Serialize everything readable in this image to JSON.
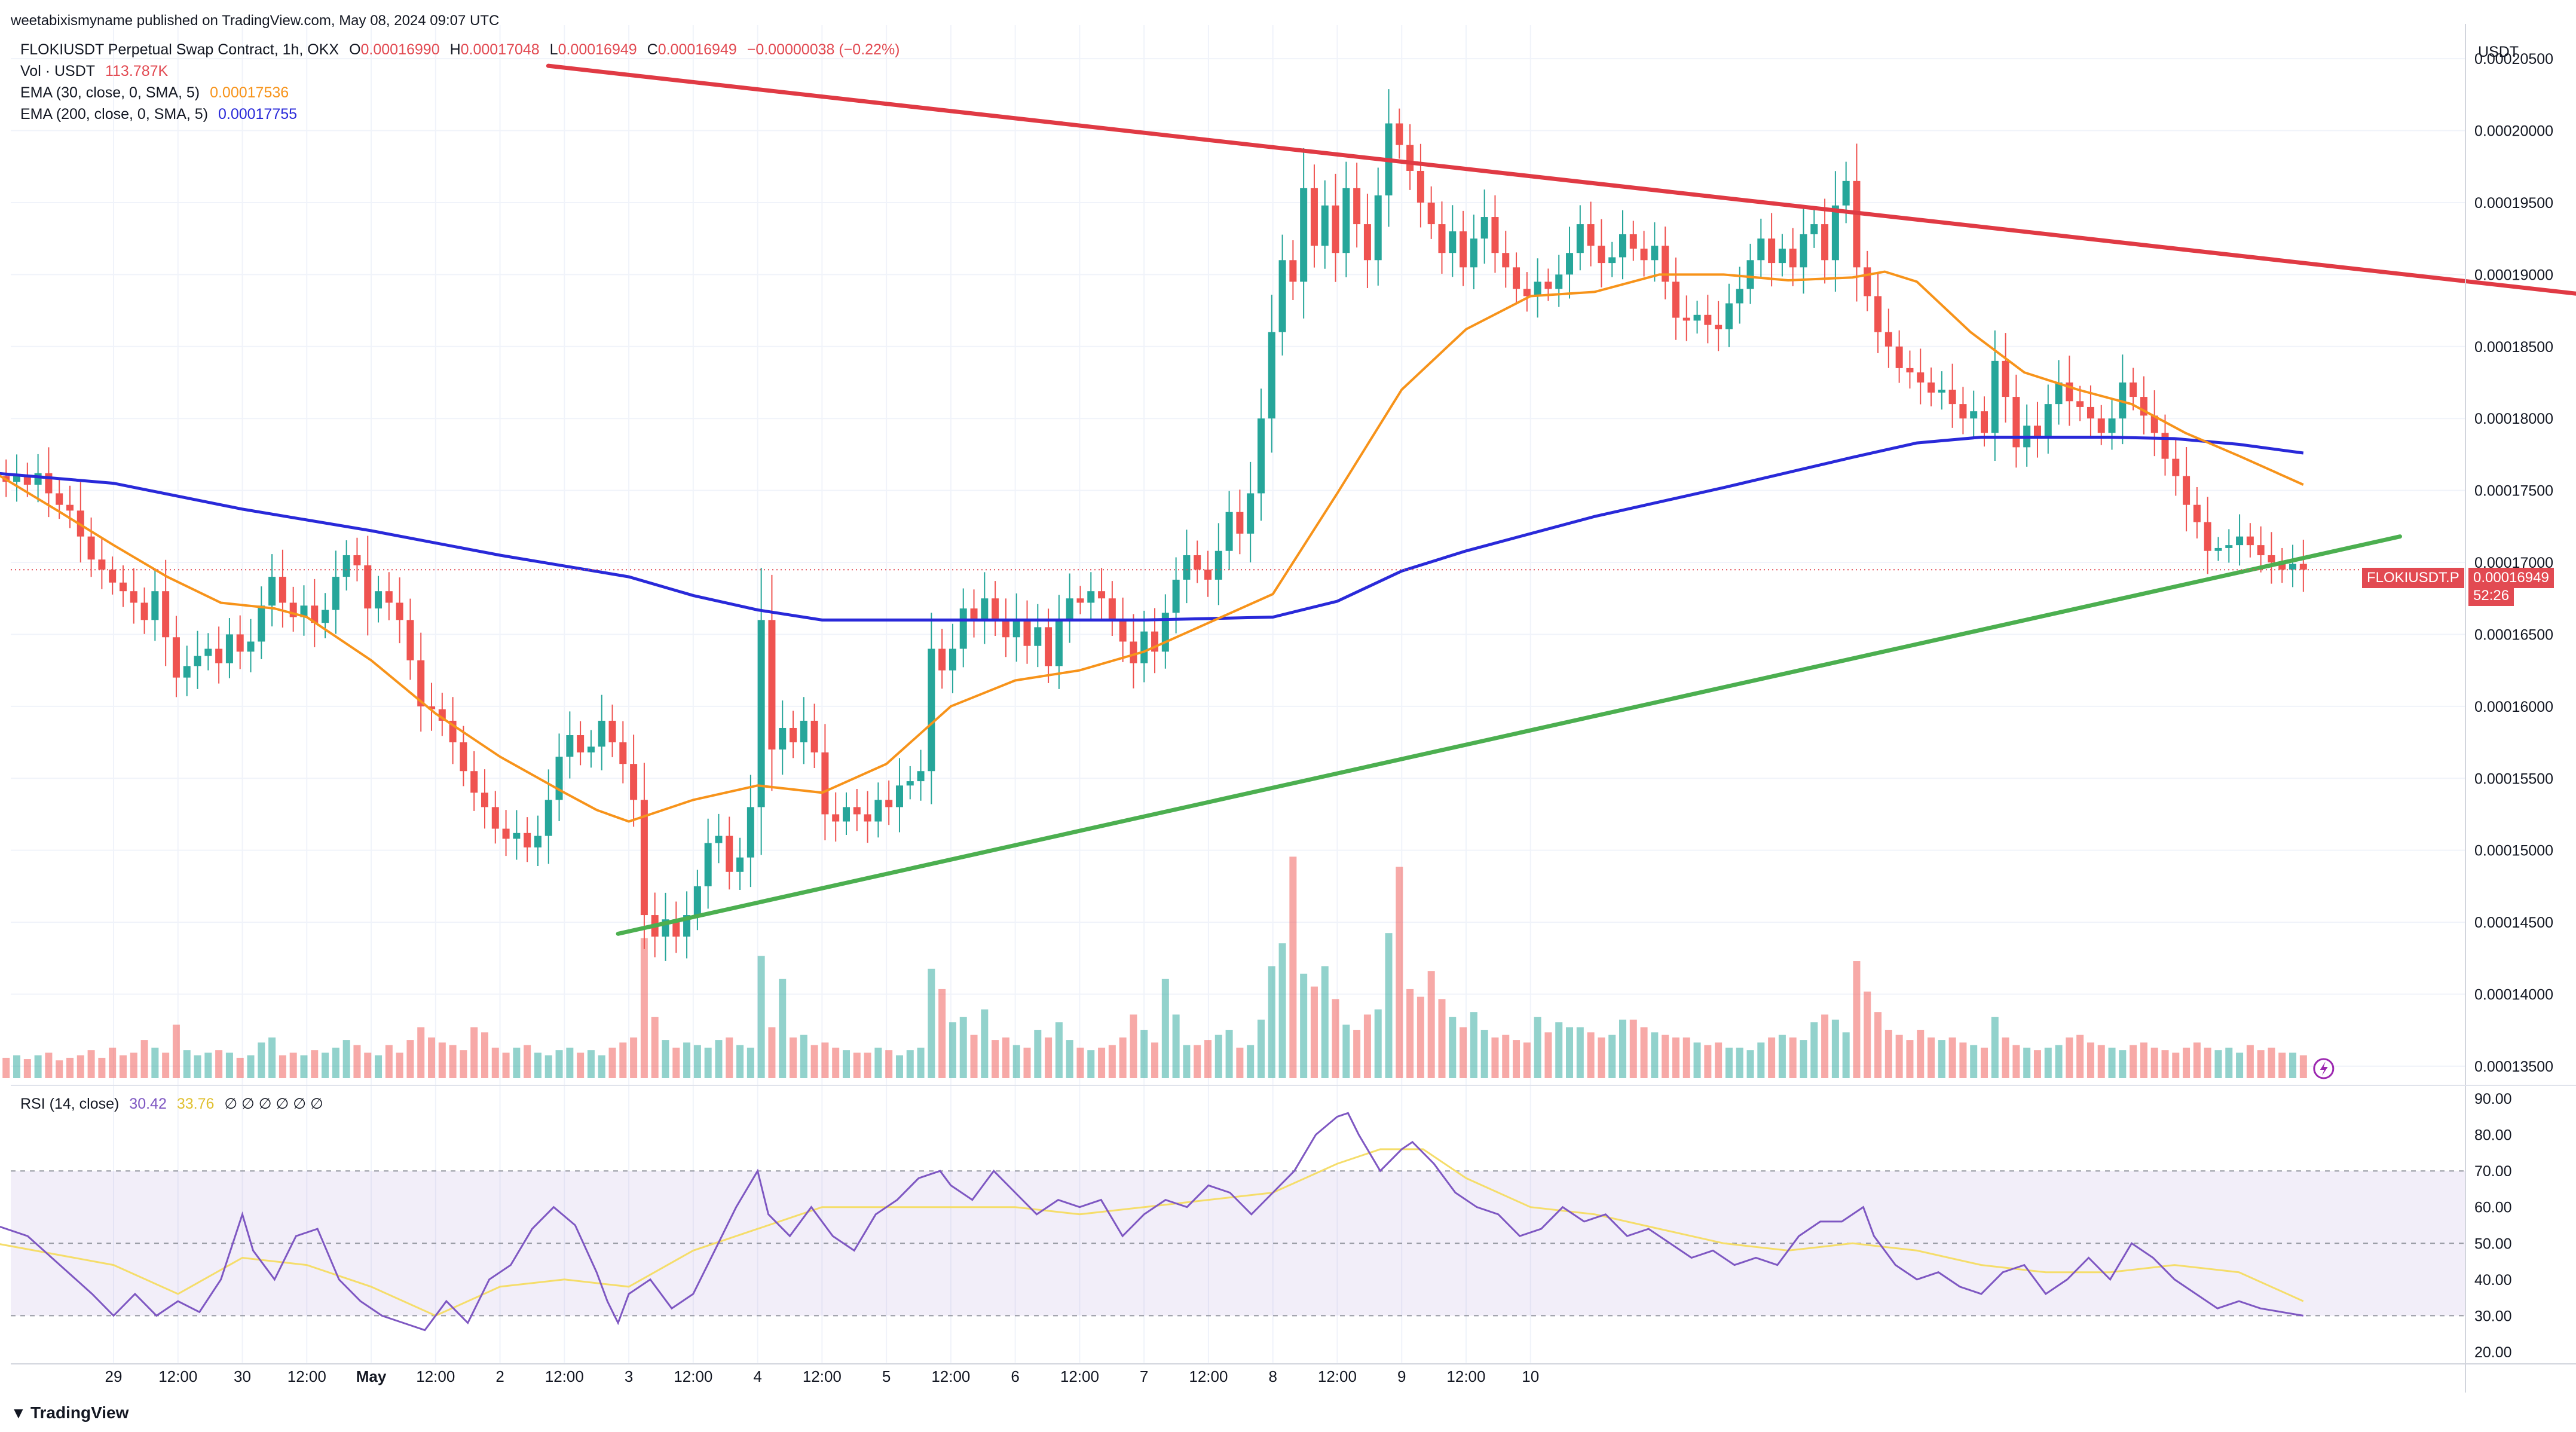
{
  "publisher": "weetabixismyname published on TradingView.com, May 08, 2024 09:07 UTC",
  "symbol_line": {
    "title": "FLOKIUSDT Perpetual Swap Contract, 1h, OKX",
    "o_label": "O",
    "o": "0.00016990",
    "h_label": "H",
    "h": "0.00017048",
    "l_label": "L",
    "l": "0.00016949",
    "c_label": "C",
    "c": "0.00016949",
    "change": "−0.00000038 (−0.22%)"
  },
  "vol_line": {
    "label": "Vol · USDT",
    "value": "113.787K"
  },
  "ema30": {
    "label": "EMA (30, close, 0, SMA, 5)",
    "value": "0.00017536",
    "color": "#f7931a"
  },
  "ema200": {
    "label": "EMA (200, close, 0, SMA, 5)",
    "value": "0.00017755",
    "color": "#2929d9"
  },
  "rsi_legend": {
    "label": "RSI (14, close)",
    "rsi": "30.42",
    "ma": "33.76",
    "empties": "∅ ∅ ∅ ∅ ∅ ∅"
  },
  "currency": "USDT",
  "price_tag": {
    "symbol": "FLOKIUSDT.P",
    "price": "0.00016949",
    "countdown": "52:26",
    "color": "#e24a52"
  },
  "branding": "TradingView",
  "colors": {
    "up": "#26a69a",
    "down": "#ef5350",
    "resistance": "#e03a44",
    "support": "#4caf50",
    "rsi": "#7e57c2",
    "rsi_ma": "#f5dd6a"
  },
  "chart_data": {
    "type": "candlestick",
    "title": "FLOKIUSDT Perpetual Swap Contract, 1h, OKX",
    "y_ticks": [
      "0.00020500",
      "0.00020000",
      "0.00019500",
      "0.00019000",
      "0.00018500",
      "0.00018000",
      "0.00017500",
      "0.00017000",
      "0.00016500",
      "0.00016000",
      "0.00015500",
      "0.00015000",
      "0.00014500",
      "0.00014000",
      "0.00013500"
    ],
    "ylim": [
      0.000134,
      0.0002065
    ],
    "x_ticks": [
      "29",
      "12:00",
      "30",
      "12:00",
      "May",
      "12:00",
      "2",
      "12:00",
      "3",
      "12:00",
      "4",
      "12:00",
      "5",
      "12:00",
      "6",
      "12:00",
      "7",
      "12:00",
      "8",
      "12:00",
      "9",
      "12:00",
      "10"
    ],
    "x_tick_hours": [
      0,
      12,
      24,
      36,
      48,
      60,
      72,
      84,
      96,
      108,
      120,
      132,
      144,
      156,
      168,
      180,
      192,
      204,
      216,
      228,
      240,
      252,
      264
    ],
    "first_bar_hour": -22,
    "closes": [
      0.000176,
      0.0001756,
      0.000176,
      0.0001754,
      0.0001762,
      0.0001748,
      0.000174,
      0.0001736,
      0.0001718,
      0.0001702,
      0.0001695,
      0.0001686,
      0.000168,
      0.0001672,
      0.000166,
      0.000168,
      0.0001648,
      0.000162,
      0.0001628,
      0.0001635,
      0.000164,
      0.000163,
      0.000165,
      0.0001638,
      0.0001645,
      0.000167,
      0.000169,
      0.0001672,
      0.0001662,
      0.000167,
      0.0001658,
      0.0001667,
      0.000169,
      0.0001705,
      0.0001698,
      0.0001668,
      0.000168,
      0.0001672,
      0.000166,
      0.0001632,
      0.00016,
      0.0001598,
      0.000159,
      0.0001575,
      0.0001555,
      0.000154,
      0.000153,
      0.0001515,
      0.0001508,
      0.0001512,
      0.0001502,
      0.000151,
      0.0001535,
      0.0001565,
      0.000158,
      0.0001568,
      0.0001572,
      0.000159,
      0.0001575,
      0.000156,
      0.0001535,
      0.0001455,
      0.000144,
      0.0001452,
      0.000144,
      0.0001455,
      0.0001475,
      0.0001505,
      0.000151,
      0.0001485,
      0.0001495,
      0.000153,
      0.000166,
      0.000157,
      0.0001585,
      0.0001575,
      0.000159,
      0.0001568,
      0.0001525,
      0.000152,
      0.000153,
      0.0001525,
      0.000152,
      0.0001535,
      0.000153,
      0.0001545,
      0.0001548,
      0.0001555,
      0.000164,
      0.0001625,
      0.000164,
      0.0001668,
      0.000166,
      0.0001675,
      0.000166,
      0.0001648,
      0.000166,
      0.0001642,
      0.0001655,
      0.0001628,
      0.000166,
      0.0001675,
      0.0001672,
      0.000168,
      0.0001675,
      0.000166,
      0.0001645,
      0.000163,
      0.0001652,
      0.0001638,
      0.0001665,
      0.0001688,
      0.0001705,
      0.0001695,
      0.0001688,
      0.0001708,
      0.0001735,
      0.000172,
      0.0001748,
      0.00018,
      0.000186,
      0.000191,
      0.0001895,
      0.000196,
      0.000192,
      0.0001948,
      0.0001915,
      0.000196,
      0.0001935,
      0.000191,
      0.0001955,
      0.0002005,
      0.000199,
      0.0001972,
      0.000195,
      0.0001935,
      0.0001915,
      0.000193,
      0.0001905,
      0.0001925,
      0.000194,
      0.0001915,
      0.0001905,
      0.000189,
      0.0001885,
      0.0001895,
      0.000189,
      0.00019,
      0.0001915,
      0.0001935,
      0.000192,
      0.0001908,
      0.0001912,
      0.0001928,
      0.0001918,
      0.000191,
      0.000192,
      0.0001895,
      0.000187,
      0.0001868,
      0.0001872,
      0.0001865,
      0.0001862,
      0.000188,
      0.000189,
      0.000191,
      0.0001925,
      0.0001908,
      0.0001918,
      0.0001905,
      0.0001928,
      0.0001935,
      0.000191,
      0.0001948,
      0.0001965,
      0.0001905,
      0.0001885,
      0.000186,
      0.000185,
      0.0001835,
      0.0001832,
      0.0001825,
      0.0001818,
      0.000182,
      0.000181,
      0.00018,
      0.0001805,
      0.000179,
      0.000184,
      0.0001815,
      0.000178,
      0.0001795,
      0.0001788,
      0.000181,
      0.0001825,
      0.0001812,
      0.0001808,
      0.00018,
      0.000179,
      0.00018,
      0.0001825,
      0.0001815,
      0.0001802,
      0.000179,
      0.0001772,
      0.000176,
      0.000174,
      0.0001728,
      0.0001708,
      0.000171,
      0.0001712,
      0.0001718,
      0.0001712,
      0.0001705,
      0.00017,
      0.0001695,
      0.0001699,
      0.0001695
    ],
    "volumes": [
      0.85,
      0.8,
      0.9,
      0.75,
      0.9,
      1.0,
      0.7,
      0.8,
      0.9,
      1.1,
      0.8,
      1.2,
      0.9,
      1.0,
      1.5,
      1.2,
      1.0,
      2.1,
      1.1,
      0.9,
      1.0,
      1.1,
      1.0,
      0.8,
      0.9,
      1.4,
      1.6,
      0.9,
      1.0,
      0.9,
      1.1,
      1.0,
      1.2,
      1.5,
      1.3,
      1.0,
      0.9,
      1.3,
      1.0,
      1.5,
      2.0,
      1.6,
      1.4,
      1.3,
      1.1,
      2.0,
      1.8,
      1.2,
      1.0,
      1.2,
      1.3,
      1.0,
      0.9,
      1.1,
      1.2,
      1.0,
      1.1,
      0.9,
      1.2,
      1.4,
      1.6,
      5.5,
      2.4,
      1.5,
      1.2,
      1.4,
      1.3,
      1.2,
      1.5,
      1.6,
      1.3,
      1.2,
      4.8,
      2.0,
      3.9,
      1.6,
      1.7,
      1.3,
      1.4,
      1.2,
      1.1,
      1.0,
      1.0,
      1.2,
      1.1,
      0.9,
      1.1,
      1.2,
      4.3,
      3.5,
      2.2,
      2.4,
      1.7,
      2.7,
      1.5,
      1.6,
      1.3,
      1.2,
      1.9,
      1.6,
      2.2,
      1.5,
      1.2,
      1.1,
      1.2,
      1.3,
      1.6,
      2.5,
      1.9,
      1.4,
      3.9,
      2.5,
      1.3,
      1.3,
      1.5,
      1.7,
      1.9,
      1.2,
      1.3,
      2.3,
      4.4,
      5.3,
      8.7,
      4.1,
      3.6,
      4.4,
      3.1,
      2.1,
      1.9,
      2.5,
      2.7,
      5.7,
      8.3,
      3.5,
      3.2,
      4.2,
      3.1,
      2.4,
      2.0,
      2.6,
      1.9,
      1.6,
      1.7,
      1.5,
      1.4,
      2.4,
      1.8,
      2.2,
      2.0,
      2.0,
      1.8,
      1.6,
      1.7,
      2.3,
      2.3,
      2.0,
      1.8,
      1.7,
      1.6,
      1.6,
      1.4,
      1.3,
      1.4,
      1.2,
      1.2,
      1.1,
      1.4,
      1.6,
      1.7,
      1.6,
      1.5,
      2.2,
      2.5,
      2.3,
      1.8,
      4.6,
      3.4,
      2.6,
      1.9,
      1.7,
      1.5,
      1.9,
      1.6,
      1.5,
      1.6,
      1.4,
      1.3,
      1.2,
      2.4,
      1.6,
      1.3,
      1.2,
      1.1,
      1.2,
      1.3,
      1.6,
      1.7,
      1.4,
      1.3,
      1.2,
      1.1,
      1.3,
      1.4,
      1.2,
      1.1,
      1.0,
      1.2,
      1.4,
      1.2,
      1.1,
      1.2,
      1.0,
      1.3,
      1.1,
      1.2,
      1.0,
      1.0,
      0.9,
      0.8,
      1.0
    ],
    "volume_axis_max": 10,
    "ema30_series_hour_values": [
      [
        -22,
        0.0001762
      ],
      [
        -10,
        0.0001735
      ],
      [
        0,
        0.0001712
      ],
      [
        10,
        0.000169
      ],
      [
        20,
        0.0001672
      ],
      [
        30,
        0.0001668
      ],
      [
        36,
        0.0001662
      ],
      [
        48,
        0.0001632
      ],
      [
        60,
        0.0001595
      ],
      [
        72,
        0.0001565
      ],
      [
        84,
        0.000154
      ],
      [
        90,
        0.0001528
      ],
      [
        96,
        0.000152
      ],
      [
        108,
        0.0001535
      ],
      [
        120,
        0.0001545
      ],
      [
        132,
        0.000154
      ],
      [
        144,
        0.000156
      ],
      [
        156,
        0.00016
      ],
      [
        168,
        0.0001618
      ],
      [
        180,
        0.0001625
      ],
      [
        192,
        0.0001638
      ],
      [
        204,
        0.0001658
      ],
      [
        216,
        0.0001678
      ],
      [
        228,
        0.0001748
      ],
      [
        240,
        0.000182
      ],
      [
        252,
        0.0001862
      ],
      [
        264,
        0.0001885
      ],
      [
        276,
        0.0001888
      ],
      [
        288,
        0.00019
      ],
      [
        300,
        0.00019
      ],
      [
        312,
        0.0001896
      ],
      [
        324,
        0.0001898
      ],
      [
        330,
        0.0001902
      ],
      [
        336,
        0.0001895
      ],
      [
        346,
        0.000186
      ],
      [
        356,
        0.0001832
      ],
      [
        366,
        0.000182
      ],
      [
        376,
        0.000181
      ],
      [
        386,
        0.000179
      ],
      [
        396,
        0.0001774
      ],
      [
        408,
        0.0001754
      ]
    ],
    "ema200_series_hour_values": [
      [
        -22,
        0.0001762
      ],
      [
        0,
        0.0001755
      ],
      [
        24,
        0.0001737
      ],
      [
        48,
        0.0001722
      ],
      [
        72,
        0.0001705
      ],
      [
        96,
        0.000169
      ],
      [
        108,
        0.0001677
      ],
      [
        120,
        0.0001667
      ],
      [
        132,
        0.000166
      ],
      [
        144,
        0.000166
      ],
      [
        168,
        0.000166
      ],
      [
        192,
        0.000166
      ],
      [
        216,
        0.0001662
      ],
      [
        228,
        0.0001673
      ],
      [
        240,
        0.0001694
      ],
      [
        252,
        0.0001708
      ],
      [
        276,
        0.0001732
      ],
      [
        300,
        0.0001752
      ],
      [
        324,
        0.0001773
      ],
      [
        336,
        0.0001783
      ],
      [
        348,
        0.0001787
      ],
      [
        360,
        0.0001787
      ],
      [
        372,
        0.0001787
      ],
      [
        384,
        0.0001786
      ],
      [
        396,
        0.0001782
      ],
      [
        408,
        0.0001776
      ]
    ],
    "resistance_line": [
      [
        81,
        0.0002045
      ],
      [
        463,
        0.0001885
      ]
    ],
    "support_line": [
      [
        94,
        0.0001442
      ],
      [
        426,
        0.0001718
      ]
    ],
    "rsi": {
      "y_ticks": [
        "90.00",
        "80.00",
        "70.00",
        "60.00",
        "50.00",
        "40.00",
        "30.00",
        "20.00"
      ],
      "ylim": [
        18,
        92
      ],
      "overbought": 70,
      "oversold": 30,
      "mid": 50,
      "values_hour": [
        [
          -22,
          55
        ],
        [
          -16,
          52
        ],
        [
          -10,
          44
        ],
        [
          -4,
          36
        ],
        [
          0,
          30
        ],
        [
          4,
          36
        ],
        [
          8,
          30
        ],
        [
          12,
          34
        ],
        [
          16,
          31
        ],
        [
          20,
          40
        ],
        [
          24,
          58
        ],
        [
          26,
          48
        ],
        [
          30,
          40
        ],
        [
          34,
          52
        ],
        [
          38,
          54
        ],
        [
          42,
          40
        ],
        [
          46,
          34
        ],
        [
          50,
          30
        ],
        [
          54,
          28
        ],
        [
          58,
          26
        ],
        [
          62,
          34
        ],
        [
          66,
          28
        ],
        [
          70,
          40
        ],
        [
          74,
          44
        ],
        [
          78,
          54
        ],
        [
          82,
          60
        ],
        [
          86,
          55
        ],
        [
          90,
          42
        ],
        [
          92,
          34
        ],
        [
          94,
          28
        ],
        [
          96,
          36
        ],
        [
          100,
          40
        ],
        [
          104,
          32
        ],
        [
          108,
          36
        ],
        [
          112,
          48
        ],
        [
          116,
          60
        ],
        [
          120,
          70
        ],
        [
          122,
          58
        ],
        [
          126,
          52
        ],
        [
          130,
          60
        ],
        [
          134,
          52
        ],
        [
          138,
          48
        ],
        [
          142,
          58
        ],
        [
          146,
          62
        ],
        [
          150,
          68
        ],
        [
          154,
          70
        ],
        [
          156,
          66
        ],
        [
          160,
          62
        ],
        [
          164,
          70
        ],
        [
          168,
          64
        ],
        [
          172,
          58
        ],
        [
          176,
          62
        ],
        [
          180,
          60
        ],
        [
          184,
          62
        ],
        [
          188,
          52
        ],
        [
          192,
          58
        ],
        [
          196,
          62
        ],
        [
          200,
          60
        ],
        [
          204,
          66
        ],
        [
          208,
          64
        ],
        [
          212,
          58
        ],
        [
          216,
          64
        ],
        [
          220,
          70
        ],
        [
          224,
          80
        ],
        [
          228,
          85
        ],
        [
          230,
          86
        ],
        [
          232,
          80
        ],
        [
          236,
          70
        ],
        [
          240,
          76
        ],
        [
          242,
          78
        ],
        [
          246,
          72
        ],
        [
          250,
          64
        ],
        [
          254,
          60
        ],
        [
          258,
          58
        ],
        [
          262,
          52
        ],
        [
          266,
          54
        ],
        [
          270,
          60
        ],
        [
          274,
          56
        ],
        [
          278,
          58
        ],
        [
          282,
          52
        ],
        [
          286,
          54
        ],
        [
          290,
          50
        ],
        [
          294,
          46
        ],
        [
          298,
          48
        ],
        [
          302,
          44
        ],
        [
          306,
          46
        ],
        [
          310,
          44
        ],
        [
          314,
          52
        ],
        [
          318,
          56
        ],
        [
          322,
          56
        ],
        [
          326,
          60
        ],
        [
          328,
          52
        ],
        [
          332,
          44
        ],
        [
          336,
          40
        ],
        [
          340,
          42
        ],
        [
          344,
          38
        ],
        [
          348,
          36
        ],
        [
          352,
          42
        ],
        [
          356,
          44
        ],
        [
          360,
          36
        ],
        [
          364,
          40
        ],
        [
          368,
          46
        ],
        [
          372,
          40
        ],
        [
          376,
          50
        ],
        [
          380,
          46
        ],
        [
          384,
          40
        ],
        [
          388,
          36
        ],
        [
          392,
          32
        ],
        [
          396,
          34
        ],
        [
          400,
          32
        ],
        [
          404,
          31
        ],
        [
          408,
          30
        ]
      ],
      "ma_hour": [
        [
          -22,
          50
        ],
        [
          0,
          44
        ],
        [
          12,
          36
        ],
        [
          24,
          46
        ],
        [
          36,
          44
        ],
        [
          48,
          38
        ],
        [
          60,
          30
        ],
        [
          72,
          38
        ],
        [
          84,
          40
        ],
        [
          96,
          38
        ],
        [
          108,
          48
        ],
        [
          120,
          54
        ],
        [
          132,
          60
        ],
        [
          144,
          60
        ],
        [
          156,
          60
        ],
        [
          168,
          60
        ],
        [
          180,
          58
        ],
        [
          192,
          60
        ],
        [
          204,
          62
        ],
        [
          216,
          64
        ],
        [
          228,
          72
        ],
        [
          236,
          76
        ],
        [
          244,
          76
        ],
        [
          252,
          68
        ],
        [
          264,
          60
        ],
        [
          276,
          58
        ],
        [
          288,
          54
        ],
        [
          300,
          50
        ],
        [
          312,
          48
        ],
        [
          324,
          50
        ],
        [
          336,
          48
        ],
        [
          348,
          44
        ],
        [
          360,
          42
        ],
        [
          372,
          42
        ],
        [
          384,
          44
        ],
        [
          396,
          42
        ],
        [
          408,
          34
        ]
      ]
    }
  }
}
